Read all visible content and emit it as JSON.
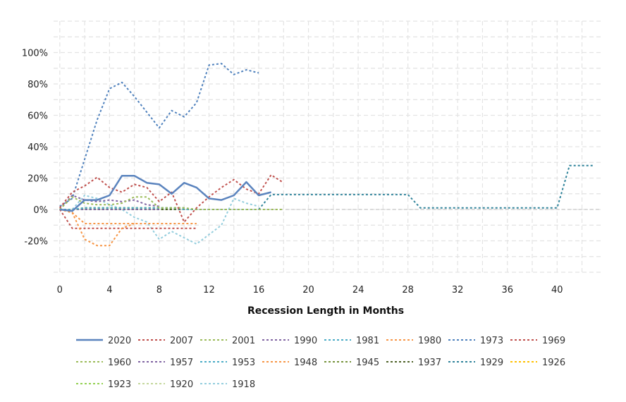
{
  "chart_data": {
    "type": "line",
    "title": "",
    "xlabel": "Recession Length in Months",
    "ylabel": "",
    "xlim": [
      -0.5,
      43.5
    ],
    "ylim": [
      -40,
      120
    ],
    "x_ticks": [
      0,
      4,
      8,
      12,
      16,
      20,
      24,
      28,
      32,
      36,
      40
    ],
    "y_ticks": [
      -20,
      0,
      20,
      40,
      60,
      80,
      100
    ],
    "y_tick_labels": [
      "-20%",
      "0%",
      "20%",
      "40%",
      "60%",
      "80%",
      "100%"
    ],
    "grid": true,
    "legend_position": "bottom",
    "series": [
      {
        "name": "2020",
        "color": "#5b84be",
        "dash": "solid",
        "width": 2.5,
        "points": [
          [
            0,
            0
          ],
          [
            1,
            -1
          ],
          [
            2,
            6
          ],
          [
            3,
            6
          ],
          [
            4,
            9
          ],
          [
            5,
            21.5
          ],
          [
            6,
            21.5
          ],
          [
            7,
            17
          ],
          [
            8,
            16
          ],
          [
            9,
            10
          ],
          [
            10,
            17
          ],
          [
            11,
            14
          ],
          [
            12,
            7
          ],
          [
            13,
            6
          ],
          [
            14,
            9
          ],
          [
            15,
            17.5
          ],
          [
            16,
            9
          ],
          [
            17,
            11
          ]
        ]
      },
      {
        "name": "2007",
        "color": "#c0504d",
        "dash": "dot",
        "width": 2,
        "points": [
          [
            0,
            1
          ],
          [
            1,
            11
          ],
          [
            2,
            15
          ],
          [
            3,
            20.5
          ],
          [
            4,
            14
          ],
          [
            5,
            11
          ],
          [
            6,
            16
          ],
          [
            7,
            14
          ],
          [
            8,
            5
          ],
          [
            9,
            11
          ],
          [
            10,
            -8
          ],
          [
            11,
            1
          ],
          [
            12,
            8
          ],
          [
            13,
            14
          ],
          [
            14,
            19
          ],
          [
            15,
            13
          ],
          [
            16,
            10
          ],
          [
            17,
            22
          ],
          [
            18,
            17
          ]
        ]
      },
      {
        "name": "2001",
        "color": "#9bbb59",
        "dash": "dot",
        "width": 2,
        "points": [
          [
            0,
            0
          ],
          [
            1,
            8
          ],
          [
            2,
            4
          ],
          [
            3,
            3
          ],
          [
            4,
            3
          ],
          [
            5,
            4
          ],
          [
            6,
            8
          ],
          [
            7,
            8
          ],
          [
            8,
            1
          ],
          [
            9,
            1
          ],
          [
            10,
            1
          ],
          [
            11,
            0
          ],
          [
            12,
            0
          ],
          [
            13,
            0
          ],
          [
            14,
            0
          ],
          [
            15,
            0
          ],
          [
            16,
            0
          ],
          [
            17,
            0
          ],
          [
            18,
            0
          ]
        ]
      },
      {
        "name": "1990",
        "color": "#8064a2",
        "dash": "dot",
        "width": 2,
        "points": [
          [
            0,
            0
          ],
          [
            1,
            9
          ],
          [
            2,
            6
          ],
          [
            3,
            5
          ],
          [
            4,
            6
          ],
          [
            5,
            5
          ],
          [
            6,
            6
          ],
          [
            7,
            3
          ],
          [
            8,
            2
          ]
        ]
      },
      {
        "name": "1981",
        "color": "#4bacc6",
        "dash": "dot",
        "width": 2,
        "points": [
          [
            0,
            0
          ],
          [
            1,
            0
          ],
          [
            2,
            1
          ],
          [
            3,
            1
          ],
          [
            4,
            1
          ],
          [
            5,
            1
          ],
          [
            6,
            1
          ],
          [
            7,
            1
          ],
          [
            8,
            1
          ],
          [
            9,
            1
          ],
          [
            10,
            0
          ],
          [
            11,
            0
          ],
          [
            12,
            0
          ],
          [
            13,
            0
          ],
          [
            14,
            0
          ],
          [
            15,
            0
          ],
          [
            16,
            0
          ]
        ]
      },
      {
        "name": "1980",
        "color": "#f79646",
        "dash": "dot",
        "width": 2,
        "points": [
          [
            0,
            0
          ],
          [
            1,
            -2
          ],
          [
            2,
            -19
          ],
          [
            3,
            -23
          ],
          [
            4,
            -23
          ],
          [
            5,
            -12
          ],
          [
            6,
            -9
          ]
        ]
      },
      {
        "name": "1973",
        "color": "#4f81bd",
        "dash": "dot",
        "width": 2,
        "points": [
          [
            0,
            2
          ],
          [
            1,
            7
          ],
          [
            2,
            32
          ],
          [
            3,
            57
          ],
          [
            4,
            77
          ],
          [
            5,
            81
          ],
          [
            6,
            72
          ],
          [
            7,
            62
          ],
          [
            8,
            52
          ],
          [
            9,
            63
          ],
          [
            10,
            59
          ],
          [
            11,
            68
          ],
          [
            12,
            92
          ],
          [
            13,
            93
          ],
          [
            14,
            86
          ],
          [
            15,
            89
          ],
          [
            16,
            87
          ]
        ]
      },
      {
        "name": "1969",
        "color": "#c0504d",
        "dash": "dot",
        "width": 2,
        "points": [
          [
            0,
            0
          ],
          [
            1,
            -12
          ],
          [
            2,
            -12
          ],
          [
            3,
            -12
          ],
          [
            4,
            -12
          ],
          [
            5,
            -12
          ],
          [
            6,
            -12
          ],
          [
            7,
            -12
          ],
          [
            8,
            -12
          ],
          [
            9,
            -12
          ],
          [
            10,
            -12
          ],
          [
            11,
            -12
          ]
        ]
      },
      {
        "name": "1960",
        "color": "#9bbb59",
        "dash": "dot",
        "width": 2,
        "points": [
          [
            0,
            0
          ],
          [
            1,
            0
          ],
          [
            2,
            1
          ],
          [
            3,
            1
          ],
          [
            4,
            1
          ],
          [
            5,
            1
          ],
          [
            6,
            1
          ],
          [
            7,
            1
          ],
          [
            8,
            1
          ],
          [
            9,
            1
          ],
          [
            10,
            1
          ]
        ]
      },
      {
        "name": "1957",
        "color": "#8064a2",
        "dash": "dot",
        "width": 2,
        "points": [
          [
            0,
            0
          ],
          [
            1,
            0
          ],
          [
            2,
            0
          ],
          [
            3,
            0
          ],
          [
            4,
            0
          ],
          [
            5,
            0
          ],
          [
            6,
            0
          ],
          [
            7,
            0
          ],
          [
            8,
            0
          ]
        ]
      },
      {
        "name": "1953",
        "color": "#4bacc6",
        "dash": "dot",
        "width": 2,
        "points": [
          [
            0,
            0
          ],
          [
            1,
            0
          ],
          [
            2,
            1
          ],
          [
            3,
            1
          ],
          [
            4,
            1
          ],
          [
            5,
            1
          ],
          [
            6,
            1
          ],
          [
            7,
            1
          ],
          [
            8,
            1
          ],
          [
            9,
            1
          ],
          [
            10,
            1
          ]
        ]
      },
      {
        "name": "1948",
        "color": "#f79646",
        "dash": "dot",
        "width": 2,
        "points": [
          [
            0,
            0
          ],
          [
            1,
            -2
          ],
          [
            2,
            -9
          ],
          [
            3,
            -9
          ],
          [
            4,
            -9
          ],
          [
            5,
            -9
          ],
          [
            6,
            -9
          ],
          [
            7,
            -9
          ],
          [
            8,
            -9
          ],
          [
            9,
            -9
          ],
          [
            10,
            -9
          ],
          [
            11,
            -9
          ]
        ]
      },
      {
        "name": "1945",
        "color": "#77933c",
        "dash": "dot",
        "width": 2,
        "points": [
          [
            0,
            0
          ],
          [
            1,
            0
          ],
          [
            2,
            1
          ],
          [
            3,
            1
          ],
          [
            4,
            1
          ],
          [
            5,
            1
          ],
          [
            6,
            1
          ],
          [
            7,
            1
          ],
          [
            8,
            1
          ]
        ]
      },
      {
        "name": "1937",
        "color": "#4f6228",
        "dash": "dot",
        "width": 2,
        "points": [
          [
            0,
            0
          ],
          [
            1,
            0
          ],
          [
            2,
            0
          ],
          [
            3,
            0
          ],
          [
            4,
            0
          ],
          [
            5,
            0
          ],
          [
            6,
            0
          ],
          [
            7,
            0
          ],
          [
            8,
            0
          ],
          [
            9,
            0
          ],
          [
            10,
            0
          ],
          [
            11,
            0
          ],
          [
            12,
            0
          ],
          [
            13,
            0
          ]
        ]
      },
      {
        "name": "1929",
        "color": "#31849b",
        "dash": "dot",
        "width": 2,
        "points": [
          [
            0,
            0
          ],
          [
            1,
            0
          ],
          [
            2,
            0
          ],
          [
            3,
            0
          ],
          [
            4,
            0
          ],
          [
            5,
            0
          ],
          [
            6,
            0
          ],
          [
            7,
            0
          ],
          [
            8,
            0
          ],
          [
            9,
            0
          ],
          [
            10,
            0
          ],
          [
            11,
            0
          ],
          [
            12,
            0
          ],
          [
            13,
            0
          ],
          [
            14,
            0
          ],
          [
            15,
            0
          ],
          [
            16,
            0
          ],
          [
            17,
            9.5
          ],
          [
            18,
            9.5
          ],
          [
            19,
            9.5
          ],
          [
            20,
            9.5
          ],
          [
            21,
            9.5
          ],
          [
            22,
            9.5
          ],
          [
            23,
            9.5
          ],
          [
            24,
            9.5
          ],
          [
            25,
            9.5
          ],
          [
            26,
            9.5
          ],
          [
            27,
            9.5
          ],
          [
            28,
            9.5
          ],
          [
            29,
            1
          ],
          [
            30,
            1
          ],
          [
            31,
            1
          ],
          [
            32,
            1
          ],
          [
            33,
            1
          ],
          [
            34,
            1
          ],
          [
            35,
            1
          ],
          [
            36,
            1
          ],
          [
            37,
            1
          ],
          [
            38,
            1
          ],
          [
            39,
            1
          ],
          [
            40,
            1
          ],
          [
            41,
            28
          ],
          [
            42,
            28
          ],
          [
            43,
            28
          ]
        ]
      },
      {
        "name": "1926",
        "color": "#ffc000",
        "dash": "dot",
        "width": 2,
        "points": [
          [
            0,
            0
          ],
          [
            1,
            0
          ],
          [
            2,
            0
          ],
          [
            3,
            0
          ],
          [
            4,
            0
          ],
          [
            5,
            0
          ],
          [
            6,
            0
          ],
          [
            7,
            0
          ],
          [
            8,
            0
          ],
          [
            9,
            0
          ],
          [
            10,
            0
          ],
          [
            11,
            0
          ],
          [
            12,
            0
          ],
          [
            13,
            0
          ]
        ]
      },
      {
        "name": "1923",
        "color": "#92d050",
        "dash": "dot",
        "width": 2,
        "points": [
          [
            0,
            0
          ],
          [
            1,
            0
          ],
          [
            2,
            0
          ],
          [
            3,
            0
          ],
          [
            4,
            0
          ],
          [
            5,
            0
          ],
          [
            6,
            0
          ],
          [
            7,
            0
          ],
          [
            8,
            0
          ],
          [
            9,
            0
          ],
          [
            10,
            0
          ],
          [
            11,
            0
          ],
          [
            12,
            0
          ],
          [
            13,
            0
          ],
          [
            14,
            0
          ]
        ]
      },
      {
        "name": "1920",
        "color": "#c4d79b",
        "dash": "dot",
        "width": 2,
        "points": [
          [
            0,
            0
          ],
          [
            1,
            0
          ],
          [
            2,
            0
          ],
          [
            3,
            0
          ],
          [
            4,
            0
          ],
          [
            5,
            0
          ],
          [
            6,
            0
          ],
          [
            7,
            0
          ],
          [
            8,
            0
          ],
          [
            9,
            0
          ],
          [
            10,
            0
          ],
          [
            11,
            0
          ],
          [
            12,
            0
          ],
          [
            13,
            0
          ],
          [
            14,
            0
          ],
          [
            15,
            0
          ],
          [
            16,
            0
          ],
          [
            17,
            0
          ],
          [
            18,
            0
          ]
        ]
      },
      {
        "name": "1918",
        "color": "#93cddd",
        "dash": "dot",
        "width": 2,
        "points": [
          [
            0,
            0
          ],
          [
            1,
            0
          ],
          [
            2,
            9
          ],
          [
            3,
            7
          ],
          [
            4,
            3
          ],
          [
            5,
            0
          ],
          [
            6,
            -5
          ],
          [
            7,
            -8
          ],
          [
            8,
            -19
          ],
          [
            9,
            -14
          ],
          [
            10,
            -18
          ],
          [
            11,
            -22
          ],
          [
            12,
            -16
          ],
          [
            13,
            -10
          ],
          [
            14,
            7
          ],
          [
            15,
            4
          ],
          [
            16,
            2
          ]
        ]
      }
    ]
  }
}
